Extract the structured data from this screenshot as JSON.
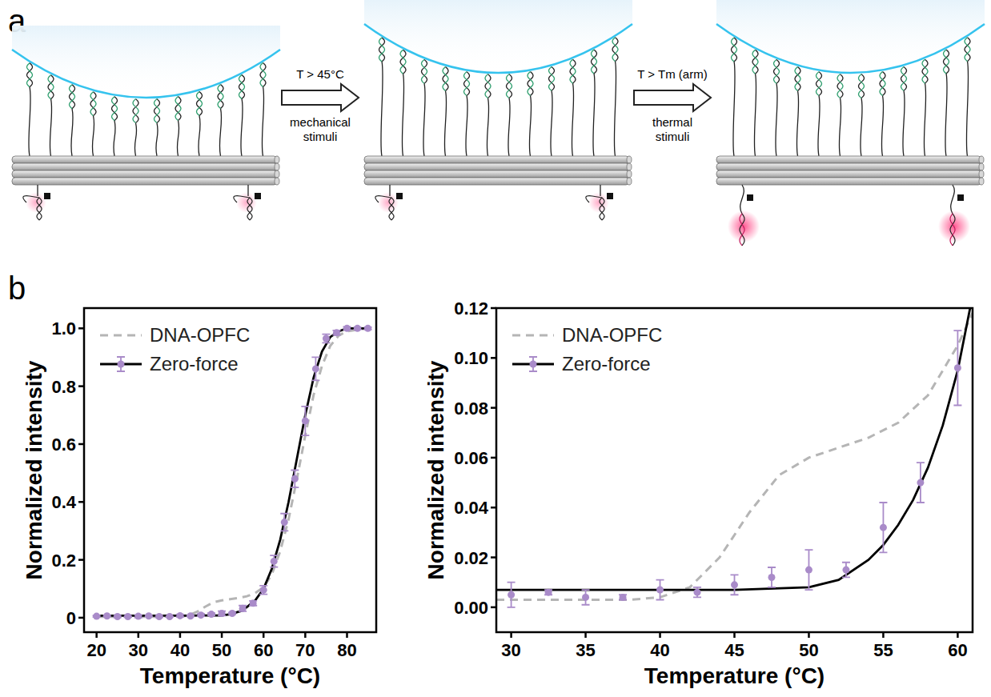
{
  "diagram": {
    "label": "a",
    "steps": [
      {
        "condition": "T > 45°C",
        "stimulus": "mechanical stimuli"
      },
      {
        "condition": "T > Tm (arm)",
        "stimulus": "thermal stimuli"
      }
    ]
  },
  "charts_label": "b",
  "chart_data": [
    {
      "type": "line",
      "xlabel": "Temperature (°C)",
      "ylabel": "Normalized intensity",
      "xlim": [
        17,
        87
      ],
      "xticks": [
        20,
        30,
        40,
        50,
        60,
        70,
        80
      ],
      "ylim": [
        -0.05,
        1.07
      ],
      "yticks": [
        0,
        0.2,
        0.4,
        0.6,
        0.8,
        {
          "value": 1,
          "label": "1.0"
        }
      ],
      "grid": false,
      "legend": "upper left",
      "series": [
        {
          "name": "DNA-OPFC",
          "type": "line",
          "color": "#b5b5b5",
          "line_style": "dashed",
          "x": [
            20,
            30,
            40,
            42,
            44,
            46,
            48,
            50,
            52,
            54,
            56,
            58,
            60,
            62,
            64,
            66,
            68,
            70,
            72,
            74,
            76,
            78,
            80,
            85
          ],
          "values": [
            0.003,
            0.003,
            0.004,
            0.008,
            0.02,
            0.038,
            0.053,
            0.06,
            0.064,
            0.068,
            0.074,
            0.085,
            0.105,
            0.15,
            0.23,
            0.34,
            0.48,
            0.63,
            0.77,
            0.87,
            0.94,
            0.975,
            0.99,
            1.0
          ]
        },
        {
          "name": "Zero-force",
          "type": "scatter",
          "color": "#a98bc9",
          "marker": "circle",
          "x": [
            20,
            22.5,
            25,
            27.5,
            30,
            32.5,
            35,
            37.5,
            40,
            42.5,
            45,
            47.5,
            50,
            52.5,
            55,
            57.5,
            60,
            62.5,
            65,
            67.5,
            70,
            72.5,
            75,
            77.5,
            80,
            82.5,
            85
          ],
          "values": [
            0.005,
            0.006,
            0.004,
            0.004,
            0.005,
            0.006,
            0.004,
            0.004,
            0.007,
            0.006,
            0.009,
            0.012,
            0.015,
            0.015,
            0.032,
            0.05,
            0.096,
            0.195,
            0.33,
            0.48,
            0.68,
            0.86,
            0.965,
            0.985,
            1.0,
            1.0,
            1.0
          ],
          "error": [
            0.003,
            0.002,
            0.003,
            0.002,
            0.005,
            0.001,
            0.003,
            0.001,
            0.004,
            0.002,
            0.004,
            0.004,
            0.008,
            0.003,
            0.01,
            0.008,
            0.015,
            0.02,
            0.03,
            0.03,
            0.05,
            0.04,
            0.015,
            0.008,
            0.005,
            0.004,
            0.004
          ],
          "fit": {
            "color": "#000000",
            "x": [
              20,
              30,
              40,
              50,
              52,
              55,
              58,
              60,
              62,
              64,
              66,
              68,
              70,
              72,
              74,
              76,
              78,
              80,
              85
            ],
            "values": [
              0.007,
              0.007,
              0.007,
              0.008,
              0.012,
              0.025,
              0.06,
              0.1,
              0.17,
              0.27,
              0.4,
              0.55,
              0.7,
              0.83,
              0.92,
              0.97,
              0.99,
              1.0,
              1.0
            ]
          }
        }
      ]
    },
    {
      "type": "line",
      "xlabel": "Temperature (°C)",
      "ylabel": "Normalized intensity",
      "xlim": [
        29,
        61
      ],
      "xticks": [
        30,
        35,
        40,
        45,
        50,
        55,
        60
      ],
      "ylim": [
        -0.01,
        0.12
      ],
      "yticks": [
        {
          "value": 0,
          "label": "0.00"
        },
        0.02,
        0.04,
        0.06,
        0.08,
        {
          "value": 0.1,
          "label": "0.10"
        },
        0.12
      ],
      "grid": false,
      "legend": "upper left",
      "series": [
        {
          "name": "DNA-OPFC",
          "type": "line",
          "color": "#b5b5b5",
          "line_style": "dashed",
          "x": [
            29,
            30,
            38,
            40,
            42,
            44,
            46,
            48,
            50,
            52,
            54,
            56,
            58,
            60,
            61
          ],
          "values": [
            0.003,
            0.003,
            0.003,
            0.004,
            0.008,
            0.02,
            0.038,
            0.053,
            0.06,
            0.064,
            0.068,
            0.074,
            0.085,
            0.105,
            0.118
          ]
        },
        {
          "name": "Zero-force",
          "type": "scatter",
          "color": "#a98bc9",
          "marker": "circle",
          "x": [
            30,
            32.5,
            35,
            37.5,
            40,
            42.5,
            45,
            47.5,
            50,
            52.5,
            55,
            57.5,
            60
          ],
          "values": [
            0.005,
            0.006,
            0.004,
            0.004,
            0.007,
            0.006,
            0.009,
            0.012,
            0.015,
            0.015,
            0.032,
            0.05,
            0.096
          ],
          "error": [
            0.005,
            0.001,
            0.003,
            0.001,
            0.004,
            0.002,
            0.004,
            0.004,
            0.008,
            0.003,
            0.01,
            0.008,
            0.015
          ],
          "fit": {
            "color": "#000000",
            "x": [
              29,
              35,
              40,
              45,
              50,
              52,
              54,
              55,
              56,
              57,
              58,
              59,
              60,
              60.5,
              61
            ],
            "values": [
              0.007,
              0.007,
              0.007,
              0.007,
              0.008,
              0.011,
              0.019,
              0.025,
              0.033,
              0.043,
              0.056,
              0.073,
              0.095,
              0.11,
              0.125
            ]
          }
        }
      ]
    }
  ]
}
